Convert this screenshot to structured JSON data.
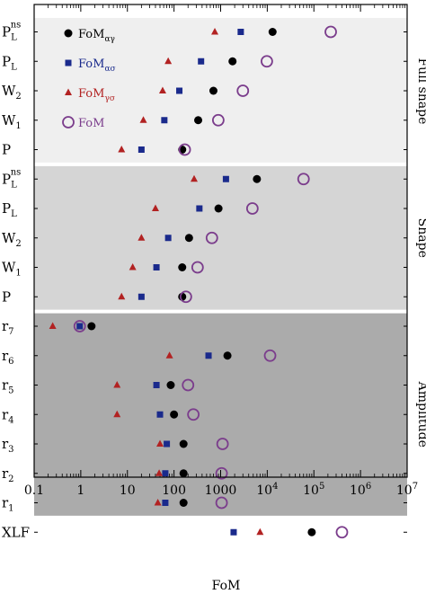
{
  "chart_data": {
    "type": "scatter",
    "xlabel": "FoM",
    "x_scale": "log",
    "xlim": [
      0.1,
      10000000
    ],
    "x_ticks": [
      {
        "value": 0.1,
        "label": "0.1"
      },
      {
        "value": 1,
        "label": "1"
      },
      {
        "value": 10,
        "label": "10"
      },
      {
        "value": 100,
        "label": "100"
      },
      {
        "value": 1000,
        "label": "1000"
      },
      {
        "value": 10000,
        "label": "10",
        "exp": "4"
      },
      {
        "value": 100000,
        "label": "10",
        "exp": "5"
      },
      {
        "value": 1000000,
        "label": "10",
        "exp": "6"
      },
      {
        "value": 10000000,
        "label": "10",
        "exp": "7"
      }
    ],
    "categories": [
      {
        "base": "P",
        "sub": "L",
        "sup": "ns"
      },
      {
        "base": "P",
        "sub": "L",
        "sup": ""
      },
      {
        "base": "W",
        "sub": "2",
        "sup": ""
      },
      {
        "base": "W",
        "sub": "1",
        "sup": ""
      },
      {
        "base": "P",
        "sub": "",
        "sup": ""
      },
      {
        "base": "P",
        "sub": "L",
        "sup": "ns"
      },
      {
        "base": "P",
        "sub": "L",
        "sup": ""
      },
      {
        "base": "W",
        "sub": "2",
        "sup": ""
      },
      {
        "base": "W",
        "sub": "1",
        "sup": ""
      },
      {
        "base": "P",
        "sub": "",
        "sup": ""
      },
      {
        "base": "r",
        "sub": "7",
        "sup": ""
      },
      {
        "base": "r",
        "sub": "6",
        "sup": ""
      },
      {
        "base": "r",
        "sub": "5",
        "sup": ""
      },
      {
        "base": "r",
        "sub": "4",
        "sup": ""
      },
      {
        "base": "r",
        "sub": "3",
        "sup": ""
      },
      {
        "base": "r",
        "sub": "2",
        "sup": ""
      },
      {
        "base": "r",
        "sub": "1",
        "sup": ""
      },
      {
        "base": "XLF",
        "sub": "",
        "sup": ""
      }
    ],
    "groups": [
      {
        "label": "Full shape",
        "rows": [
          0,
          4
        ],
        "color": "#efefef"
      },
      {
        "label": "Shape",
        "rows": [
          5,
          9
        ],
        "color": "#d5d5d5"
      },
      {
        "label": "Amplitude",
        "rows": [
          10,
          16
        ],
        "color": "#ababab"
      },
      {
        "label": "",
        "rows": [
          17,
          17
        ],
        "color": "#ffffff"
      }
    ],
    "series": [
      {
        "name": "FoM",
        "name_sub": "αγ",
        "marker": "filled-circle",
        "color": "#000000",
        "values": [
          13000,
          1800,
          700,
          330,
          150,
          6000,
          900,
          210,
          150,
          150,
          1.7,
          1400,
          85,
          100,
          160,
          160,
          160,
          90000
        ]
      },
      {
        "name": "FoM",
        "name_sub": "ασ",
        "marker": "square",
        "color": "#1a2a8c",
        "values": [
          2700,
          380,
          130,
          62,
          20,
          1300,
          350,
          75,
          42,
          20,
          0.95,
          550,
          42,
          50,
          70,
          65,
          65,
          1900
        ]
      },
      {
        "name": "FoM",
        "name_sub": "γσ",
        "marker": "triangle",
        "color": "#b22222",
        "values": [
          750,
          75,
          57,
          22,
          7.5,
          270,
          40,
          20,
          13,
          7.5,
          0.25,
          80,
          6,
          6,
          50,
          48,
          45,
          7000
        ]
      },
      {
        "name": "FoM",
        "name_sub": "",
        "marker": "open-circle",
        "color": "#7b3d8c",
        "values": [
          230000,
          9800,
          3000,
          890,
          170,
          60000,
          4800,
          650,
          320,
          180,
          0.95,
          11500,
          200,
          260,
          1100,
          1050,
          1050,
          400000
        ]
      }
    ]
  }
}
